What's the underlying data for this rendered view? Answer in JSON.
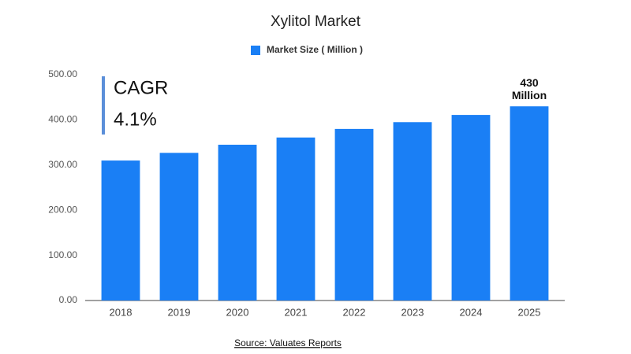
{
  "chart_data": {
    "type": "bar",
    "title": "Xylitol Market",
    "categories": [
      "2018",
      "2019",
      "2020",
      "2021",
      "2022",
      "2023",
      "2024",
      "2025"
    ],
    "series": [
      {
        "name": "Market Size ( Million )",
        "color": "#1a7ff5",
        "values": [
          310,
          327,
          345,
          361,
          380,
          395,
          411,
          430
        ],
        "value_labels": [
          null,
          null,
          null,
          null,
          null,
          null,
          null,
          "430 Million"
        ]
      }
    ],
    "ylim": [
      0,
      500
    ],
    "yticks": [
      {
        "value": 0,
        "label": "0.00"
      },
      {
        "value": 100,
        "label": "100.00"
      },
      {
        "value": 200,
        "label": "200.00"
      },
      {
        "value": 300,
        "label": "300.00"
      },
      {
        "value": 400,
        "label": "400.00"
      },
      {
        "value": 500,
        "label": "500.00"
      }
    ],
    "grid": false,
    "legend": "top",
    "annotations": [
      "CAGR",
      "4.1%"
    ],
    "source": "Source: Valuates Reports"
  }
}
